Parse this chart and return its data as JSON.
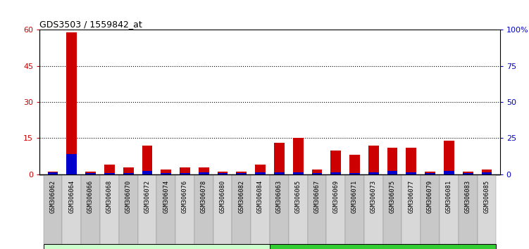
{
  "title": "GDS3503 / 1559842_at",
  "categories": [
    "GSM306062",
    "GSM306064",
    "GSM306066",
    "GSM306068",
    "GSM306070",
    "GSM306072",
    "GSM306074",
    "GSM306076",
    "GSM306078",
    "GSM306080",
    "GSM306082",
    "GSM306084",
    "GSM306063",
    "GSM306065",
    "GSM306067",
    "GSM306069",
    "GSM306071",
    "GSM306073",
    "GSM306075",
    "GSM306077",
    "GSM306079",
    "GSM306081",
    "GSM306083",
    "GSM306085"
  ],
  "count_values": [
    1,
    59,
    1,
    4,
    3,
    12,
    2,
    3,
    3,
    1,
    1,
    4,
    13,
    15,
    2,
    10,
    8,
    12,
    11,
    11,
    1,
    14,
    1,
    2
  ],
  "percentile_values": [
    1.5,
    14,
    0.8,
    0.8,
    0.8,
    2.5,
    0.8,
    0.8,
    1.5,
    0.8,
    0.8,
    1.5,
    1.5,
    1.5,
    0.8,
    1.5,
    0.8,
    1.5,
    2.5,
    1.5,
    0.8,
    2.5,
    0.8,
    1.5
  ],
  "before_exercise_count": 12,
  "after_exercise_count": 12,
  "red_color": "#cc0000",
  "blue_color": "#0000cc",
  "before_bg": "#ccffcc",
  "after_bg": "#33cc33",
  "left_yticks": [
    0,
    15,
    30,
    45,
    60
  ],
  "right_yticks": [
    0,
    25,
    50,
    75,
    100
  ],
  "right_ytick_labels": [
    "0",
    "25",
    "50",
    "75",
    "100%"
  ],
  "ylim": [
    0,
    60
  ],
  "right_ylim": [
    0,
    100
  ],
  "cell_colors": [
    "#c8c8c8",
    "#d8d8d8"
  ]
}
